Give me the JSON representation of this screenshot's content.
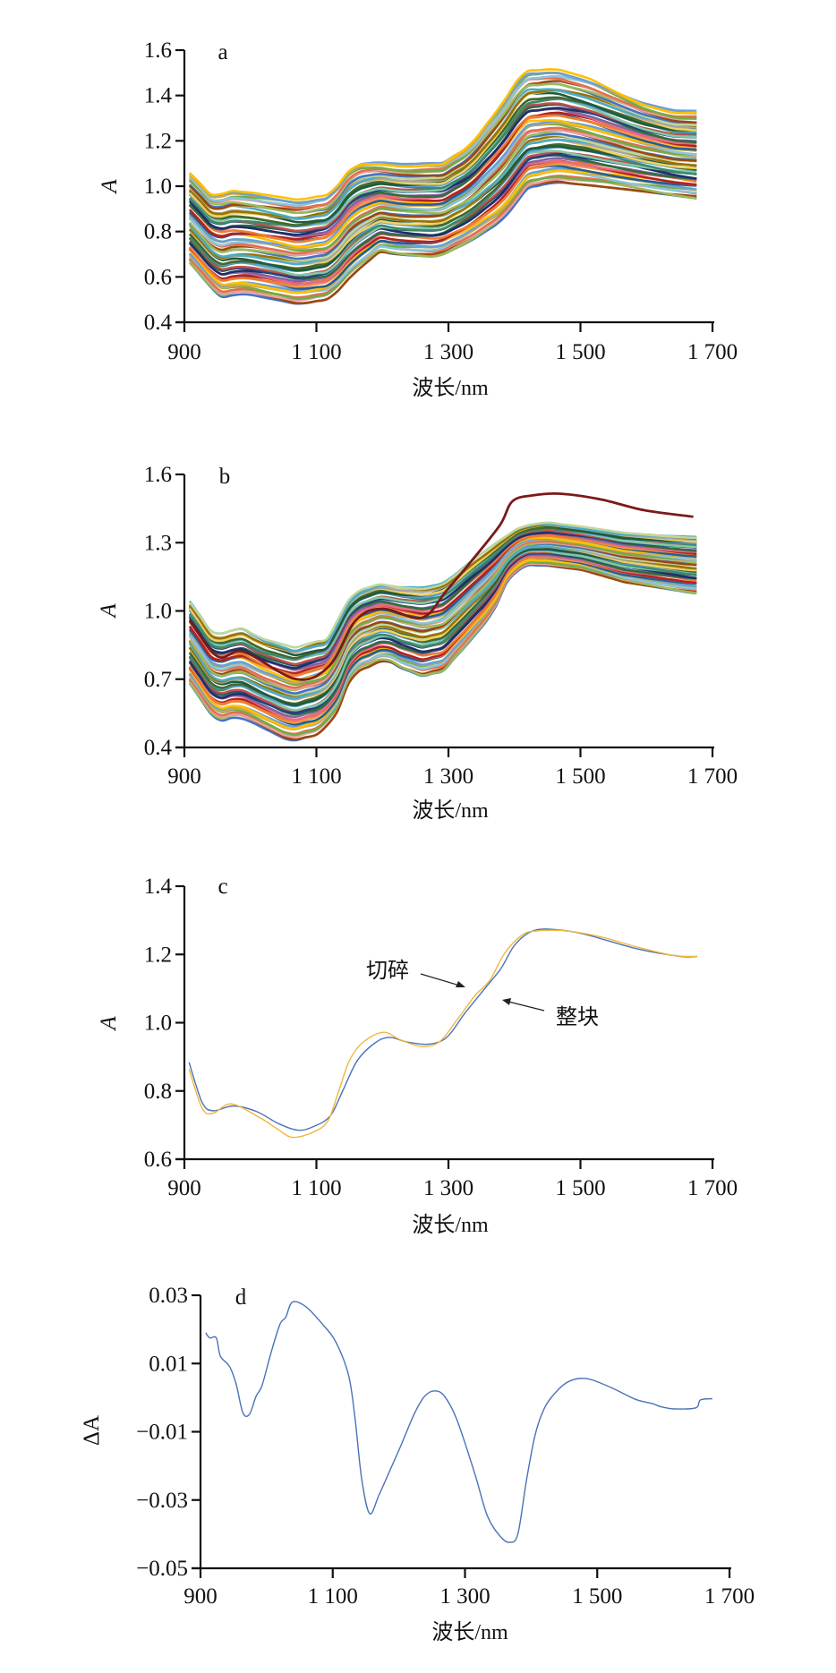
{
  "palette": [
    "#4472c4",
    "#ed7d31",
    "#a5a5a5",
    "#ffc000",
    "#5b9bd5",
    "#70ad47",
    "#264478",
    "#9e480e",
    "#e46c85",
    "#997300",
    "#255e91",
    "#43682b",
    "#8cc5d9",
    "#c0504d",
    "#9bbb59",
    "#8064a2",
    "#4bacc6",
    "#f79646",
    "#1f5c3a",
    "#d4a84b",
    "#7fc9a8",
    "#e8a0a0",
    "#2e6e3e",
    "#c2d69b",
    "#b22222",
    "#f0d060",
    "#6a9fd8",
    "#3a8a6a",
    "#e07050",
    "#1d2f6b"
  ],
  "chart_data": [
    {
      "id": "a",
      "type": "line",
      "panel_label": "a",
      "xlabel": "波长/nm",
      "ylabel": "A",
      "xlim": [
        900,
        1700
      ],
      "ylim": [
        0.4,
        1.6
      ],
      "x_ticks": [
        900,
        1100,
        1300,
        1500,
        1700
      ],
      "x_tick_labels": [
        "900",
        "1 100",
        "1 300",
        "1 500",
        "1 700"
      ],
      "y_ticks": [
        0.4,
        0.6,
        0.8,
        1.0,
        1.2,
        1.4,
        1.6
      ],
      "y_tick_labels": [
        "0.4",
        "0.6",
        "0.8",
        "1.0",
        "1.2",
        "1.4",
        "1.6"
      ],
      "n_spectra": 70,
      "envelope_upper": {
        "x": [
          908,
          944,
          969,
          1001,
          1074,
          1122,
          1155,
          1187,
          1235,
          1292,
          1332,
          1381,
          1413,
          1462,
          1510,
          1591,
          1640,
          1676
        ],
        "y": [
          1.058,
          0.953,
          0.979,
          0.972,
          0.939,
          0.966,
          1.097,
          1.111,
          1.097,
          1.104,
          1.176,
          1.361,
          1.505,
          1.518,
          1.479,
          1.374,
          1.334,
          1.332
        ]
      },
      "envelope_lower": {
        "x": [
          908,
          953,
          993,
          1074,
          1122,
          1155,
          1195,
          1235,
          1284,
          1332,
          1381,
          1421,
          1462,
          1510,
          1591,
          1676
        ],
        "y": [
          0.663,
          0.512,
          0.525,
          0.479,
          0.505,
          0.611,
          0.709,
          0.696,
          0.689,
          0.755,
          0.847,
          0.992,
          1.018,
          1.005,
          0.979,
          0.946
        ]
      }
    },
    {
      "id": "b",
      "type": "line",
      "panel_label": "b",
      "xlabel": "波长/nm",
      "ylabel": "A",
      "xlim": [
        900,
        1700
      ],
      "ylim": [
        0.4,
        1.6
      ],
      "x_ticks": [
        900,
        1100,
        1300,
        1500,
        1700
      ],
      "x_tick_labels": [
        "900",
        "1 100",
        "1 300",
        "1 500",
        "1 700"
      ],
      "y_ticks": [
        0.4,
        0.7,
        1.0,
        1.3,
        1.6
      ],
      "y_tick_labels": [
        "0.4",
        "0.7",
        "1.0",
        "1.3",
        "1.6"
      ],
      "n_spectra": 60,
      "envelope_upper": {
        "x": [
          908,
          945,
          986,
          1017,
          1067,
          1117,
          1154,
          1192,
          1229,
          1266,
          1297,
          1335,
          1372,
          1409,
          1447,
          1503,
          1565,
          1671
        ],
        "y": [
          1.043,
          0.892,
          0.925,
          0.879,
          0.839,
          0.879,
          1.075,
          1.121,
          1.108,
          1.102,
          1.128,
          1.22,
          1.298,
          1.37,
          1.39,
          1.37,
          1.344,
          1.325
        ]
      },
      "envelope_lower": {
        "x": [
          908,
          949,
          968,
          992,
          1061,
          1104,
          1129,
          1154,
          1204,
          1229,
          1260,
          1291,
          1328,
          1366,
          1391,
          1415,
          1447,
          1503,
          1565,
          1671
        ],
        "y": [
          0.682,
          0.511,
          0.531,
          0.525,
          0.426,
          0.459,
          0.538,
          0.721,
          0.787,
          0.748,
          0.715,
          0.734,
          0.852,
          0.984,
          1.141,
          1.2,
          1.2,
          1.18,
          1.128,
          1.078
        ]
      },
      "outlier": {
        "color": "#7a1a1a",
        "x": [
          908,
          950,
          990,
          1070,
          1120,
          1160,
          1200,
          1260,
          1297,
          1335,
          1378,
          1397,
          1428,
          1471,
          1533,
          1596,
          1671
        ],
        "y": [
          0.96,
          0.8,
          0.82,
          0.7,
          0.76,
          0.96,
          1.01,
          0.97,
          1.089,
          1.22,
          1.377,
          1.482,
          1.508,
          1.515,
          1.489,
          1.443,
          1.414
        ]
      }
    },
    {
      "id": "c",
      "type": "line",
      "panel_label": "c",
      "xlabel": "波长/nm",
      "ylabel": "A",
      "xlim": [
        900,
        1700
      ],
      "ylim": [
        0.6,
        1.4
      ],
      "x_ticks": [
        900,
        1100,
        1300,
        1500,
        1700
      ],
      "x_tick_labels": [
        "900",
        "1 100",
        "1 300",
        "1 500",
        "1 700"
      ],
      "y_ticks": [
        0.6,
        0.8,
        1.0,
        1.2,
        1.4
      ],
      "y_tick_labels": [
        "0.6",
        "0.8",
        "1.0",
        "1.2",
        "1.4"
      ],
      "series": [
        {
          "name": "整块",
          "color": "#4a72b8",
          "x": [
            907,
            927,
            944,
            974,
            1009,
            1042,
            1072,
            1096,
            1121,
            1140,
            1162,
            1189,
            1211,
            1238,
            1271,
            1298,
            1325,
            1358,
            1380,
            1401,
            1428,
            1461,
            1505,
            1587,
            1652,
            1677
          ],
          "y": [
            0.884,
            0.766,
            0.742,
            0.756,
            0.74,
            0.705,
            0.685,
            0.696,
            0.727,
            0.801,
            0.889,
            0.941,
            0.957,
            0.943,
            0.937,
            0.958,
            1.028,
            1.107,
            1.16,
            1.229,
            1.269,
            1.273,
            1.26,
            1.216,
            1.194,
            1.194
          ]
        },
        {
          "name": "切碎",
          "color": "#f2b63c",
          "x": [
            907,
            927,
            944,
            971,
            1014,
            1042,
            1064,
            1096,
            1118,
            1134,
            1151,
            1172,
            1202,
            1227,
            1260,
            1287,
            1314,
            1341,
            1363,
            1385,
            1412,
            1434,
            1478,
            1532,
            1587,
            1641,
            1677
          ],
          "y": [
            0.864,
            0.749,
            0.735,
            0.762,
            0.722,
            0.687,
            0.664,
            0.68,
            0.714,
            0.801,
            0.893,
            0.945,
            0.972,
            0.95,
            0.93,
            0.945,
            1.011,
            1.081,
            1.125,
            1.203,
            1.257,
            1.269,
            1.269,
            1.251,
            1.221,
            1.197,
            1.194
          ]
        }
      ],
      "annotations": [
        {
          "text": "切碎",
          "target_series": "切碎"
        },
        {
          "text": "整块",
          "target_series": "整块"
        }
      ]
    },
    {
      "id": "d",
      "type": "line",
      "panel_label": "d",
      "xlabel": "波长/nm",
      "ylabel": "ΔA",
      "xlim": [
        900,
        1700
      ],
      "ylim": [
        -0.05,
        0.03
      ],
      "x_ticks": [
        900,
        1100,
        1300,
        1500,
        1700
      ],
      "x_tick_labels": [
        "900",
        "1 100",
        "1 300",
        "1 500",
        "1 700"
      ],
      "y_ticks": [
        -0.05,
        -0.03,
        -0.01,
        0.01,
        0.03
      ],
      "y_tick_labels": [
        "−0.05",
        "−0.03",
        "−0.01",
        "0.01",
        "0.03"
      ],
      "series": [
        {
          "name": "ΔA",
          "color": "#4a72b8",
          "x": [
            908,
            914,
            924,
            930,
            944,
            954,
            964,
            974,
            984,
            993,
            1006,
            1020,
            1029,
            1039,
            1059,
            1085,
            1105,
            1124,
            1134,
            1144,
            1156,
            1170,
            1187,
            1203,
            1223,
            1239,
            1254,
            1269,
            1288,
            1315,
            1334,
            1354,
            1368,
            1380,
            1393,
            1406,
            1420,
            1436,
            1453,
            1472,
            1492,
            1525,
            1558,
            1584,
            1597,
            1617,
            1649,
            1656,
            1674
          ],
          "y": [
            0.019,
            0.0175,
            0.0175,
            0.0122,
            0.0091,
            0.0039,
            -0.0044,
            -0.0049,
            0.0004,
            0.0035,
            0.0127,
            0.0214,
            0.0236,
            0.028,
            0.0267,
            0.0214,
            0.0162,
            0.0065,
            -0.0066,
            -0.0242,
            -0.034,
            -0.0285,
            -0.0211,
            -0.0141,
            -0.0049,
            0.0004,
            0.002,
            0.0004,
            -0.0066,
            -0.0224,
            -0.0347,
            -0.0408,
            -0.0424,
            -0.0399,
            -0.0242,
            -0.011,
            -0.0031,
            0.0013,
            0.0043,
            0.0056,
            0.0052,
            0.0026,
            -0.0005,
            -0.0018,
            -0.0027,
            -0.0033,
            -0.003,
            -0.0007,
            -0.0003
          ]
        }
      ]
    }
  ]
}
